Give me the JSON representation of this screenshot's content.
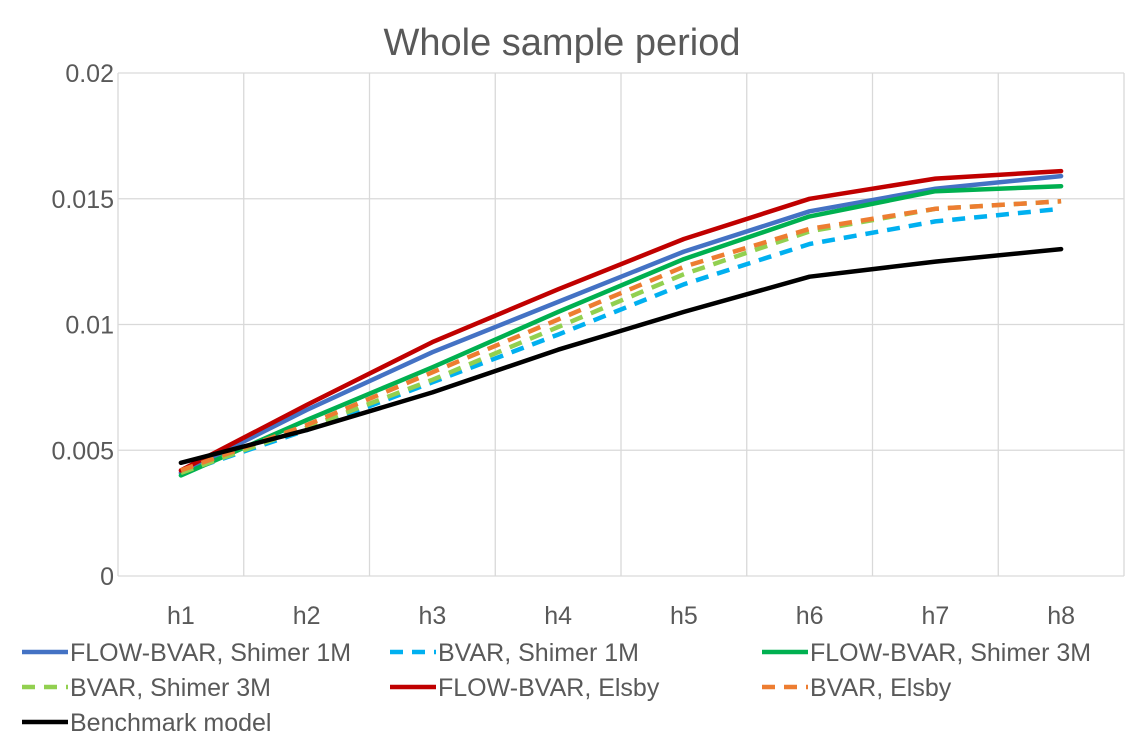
{
  "chart_data": {
    "type": "line",
    "title": "Whole sample period",
    "xlabel": "",
    "ylabel": "",
    "x": [
      "h1",
      "h2",
      "h3",
      "h4",
      "h5",
      "h6",
      "h7",
      "h8"
    ],
    "ylim": [
      0,
      0.02
    ],
    "yticks": [
      0,
      0.005,
      0.01,
      0.015,
      0.02
    ],
    "ytick_labels": [
      "0",
      "0.005",
      "0.01",
      "0.015",
      "0.02"
    ],
    "grid": "vertical and horizontal",
    "legend_position": "bottom",
    "series": [
      {
        "name": "FLOW-BVAR, Shimer 1M",
        "color": "#4472C4",
        "dash": "solid",
        "values": [
          0.0041,
          0.0066,
          0.0089,
          0.0109,
          0.0129,
          0.0145,
          0.0154,
          0.0159
        ]
      },
      {
        "name": "BVAR, Shimer 1M",
        "color": "#00B0F0",
        "dash": "dashed",
        "values": [
          0.0041,
          0.0058,
          0.0077,
          0.0096,
          0.0116,
          0.0132,
          0.0141,
          0.0146
        ]
      },
      {
        "name": "FLOW-BVAR, Shimer 3M",
        "color": "#00B050",
        "dash": "solid",
        "values": [
          0.004,
          0.0062,
          0.0083,
          0.0105,
          0.0126,
          0.0143,
          0.0153,
          0.0155
        ]
      },
      {
        "name": "BVAR, Shimer 3M",
        "color": "#92D050",
        "dash": "dashed",
        "values": [
          0.0041,
          0.0059,
          0.0078,
          0.0099,
          0.012,
          0.0137,
          0.0146,
          0.0149
        ]
      },
      {
        "name": "FLOW-BVAR, Elsby",
        "color": "#C00000",
        "dash": "solid",
        "values": [
          0.0042,
          0.0068,
          0.0093,
          0.0114,
          0.0134,
          0.015,
          0.0158,
          0.0161
        ]
      },
      {
        "name": "BVAR, Elsby",
        "color": "#ED7D31",
        "dash": "dashed",
        "values": [
          0.0042,
          0.006,
          0.0081,
          0.0102,
          0.0123,
          0.0138,
          0.0146,
          0.0149
        ]
      },
      {
        "name": "Benchmark model",
        "color": "#000000",
        "dash": "solid",
        "values": [
          0.0045,
          0.0058,
          0.0073,
          0.009,
          0.0105,
          0.0119,
          0.0125,
          0.013
        ]
      }
    ]
  }
}
